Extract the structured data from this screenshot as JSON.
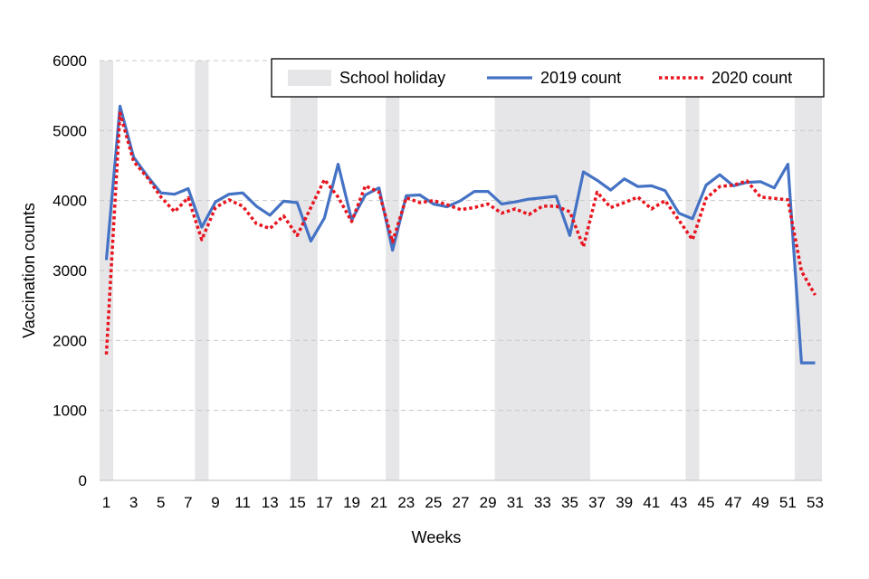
{
  "chart_data": {
    "type": "line",
    "title": "",
    "xlabel": "Weeks",
    "ylabel": "Vaccination counts",
    "xlim": [
      1,
      53
    ],
    "ylim": [
      0,
      6000
    ],
    "yticks": [
      0,
      1000,
      2000,
      3000,
      4000,
      5000,
      6000
    ],
    "xticks": [
      1,
      3,
      5,
      7,
      9,
      11,
      13,
      15,
      17,
      19,
      21,
      23,
      25,
      27,
      29,
      31,
      33,
      35,
      37,
      39,
      41,
      43,
      45,
      47,
      49,
      51,
      53
    ],
    "grid": "horizontal dashed",
    "legend_position": "top",
    "school_holiday": {
      "name": "School holiday",
      "color": "#e6e6e9",
      "weeks": [
        [
          1,
          1
        ],
        [
          8,
          8
        ],
        [
          15,
          16
        ],
        [
          22,
          22
        ],
        [
          30,
          36
        ],
        [
          44,
          44
        ],
        [
          52,
          53
        ]
      ]
    },
    "series": [
      {
        "name": "2019 count",
        "color": "#4472c4",
        "style": "solid",
        "x": [
          1,
          2,
          3,
          4,
          5,
          6,
          7,
          8,
          9,
          10,
          11,
          12,
          13,
          14,
          15,
          16,
          17,
          18,
          19,
          20,
          21,
          22,
          23,
          24,
          25,
          26,
          27,
          28,
          29,
          30,
          31,
          32,
          33,
          34,
          35,
          36,
          37,
          38,
          39,
          40,
          41,
          42,
          43,
          44,
          45,
          46,
          47,
          48,
          49,
          50,
          51,
          52,
          53
        ],
        "values": [
          3150,
          5350,
          4620,
          4350,
          4110,
          4090,
          4170,
          3620,
          3980,
          4090,
          4110,
          3920,
          3790,
          3990,
          3970,
          3420,
          3750,
          4520,
          3720,
          4080,
          4180,
          3290,
          4070,
          4080,
          3950,
          3910,
          4000,
          4130,
          4130,
          3950,
          3980,
          4020,
          4040,
          4060,
          3500,
          4410,
          4290,
          4150,
          4310,
          4200,
          4210,
          4140,
          3820,
          3740,
          4220,
          4370,
          4210,
          4260,
          4270,
          4180,
          4520,
          1680,
          1680
        ]
      },
      {
        "name": "2020 count",
        "color": "#e8151f",
        "style": "dotted",
        "x": [
          1,
          2,
          3,
          4,
          5,
          6,
          7,
          8,
          9,
          10,
          11,
          12,
          13,
          14,
          15,
          16,
          17,
          18,
          19,
          20,
          21,
          22,
          23,
          24,
          25,
          26,
          27,
          28,
          29,
          30,
          31,
          32,
          33,
          34,
          35,
          36,
          37,
          38,
          39,
          40,
          41,
          42,
          43,
          44,
          45,
          46,
          47,
          48,
          49,
          50,
          51,
          52,
          53
        ],
        "values": [
          1800,
          5250,
          4560,
          4330,
          4050,
          3840,
          4040,
          3440,
          3900,
          4010,
          3920,
          3670,
          3600,
          3780,
          3500,
          3900,
          4300,
          4050,
          3700,
          4210,
          4120,
          3410,
          4040,
          3970,
          4000,
          3940,
          3870,
          3900,
          3950,
          3820,
          3880,
          3800,
          3920,
          3920,
          3840,
          3340,
          4120,
          3900,
          3970,
          4050,
          3880,
          4000,
          3720,
          3440,
          4030,
          4200,
          4220,
          4280,
          4050,
          4030,
          4010,
          2990,
          2650
        ]
      }
    ]
  }
}
